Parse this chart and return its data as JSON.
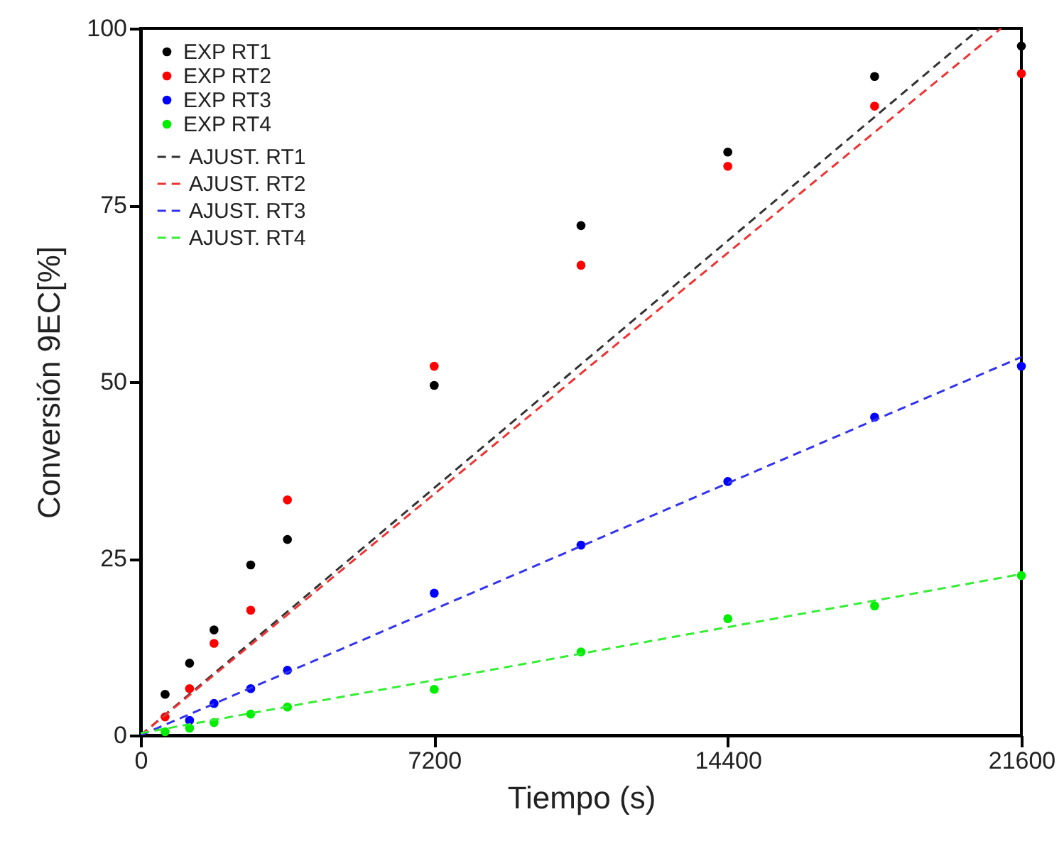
{
  "chart_data": {
    "type": "scatter",
    "xlabel": "Tiempo (s)",
    "ylabel": "Conversión 9EC[%]",
    "xlim": [
      0,
      21600
    ],
    "ylim": [
      0,
      100
    ],
    "xticks": [
      0,
      7200,
      14400,
      21600
    ],
    "yticks": [
      0,
      25,
      50,
      75,
      100
    ],
    "grid": false,
    "legend": "top left",
    "marker": "circle",
    "x": [
      600,
      1200,
      1800,
      2700,
      3600,
      7200,
      10800,
      14400,
      18000,
      21600
    ],
    "series": [
      {
        "name": "EXP RT1",
        "color": "#000000",
        "values": [
          5.8,
          10.2,
          14.9,
          24.1,
          27.7,
          49.5,
          72.1,
          82.5,
          93.2,
          97.5
        ]
      },
      {
        "name": "EXP RT2",
        "color": "#ff0000",
        "values": [
          2.6,
          6.6,
          13.0,
          17.7,
          33.3,
          52.2,
          66.5,
          80.5,
          89.0,
          93.6
        ]
      },
      {
        "name": "EXP RT3",
        "color": "#0000ff",
        "values": [
          null,
          2.1,
          4.5,
          6.6,
          9.2,
          20.1,
          26.9,
          35.9,
          45.0,
          52.2
        ]
      },
      {
        "name": "EXP RT4",
        "color": "#00ee00",
        "values": [
          0.5,
          1.0,
          1.8,
          3.0,
          4.0,
          6.5,
          11.8,
          16.5,
          18.3,
          22.6
        ]
      },
      {
        "name": "AJUST. RT1",
        "type": "line",
        "marker": "none",
        "line_style": "dashed",
        "color": "#333333",
        "x": [
          0,
          20580
        ],
        "values": [
          0,
          100
        ]
      },
      {
        "name": "AJUST. RT2",
        "type": "line",
        "marker": "none",
        "line_style": "dashed",
        "color": "#ee3333",
        "x": [
          0,
          21100
        ],
        "values": [
          0,
          100
        ]
      },
      {
        "name": "AJUST. RT3",
        "type": "line",
        "marker": "none",
        "line_style": "dashed",
        "color": "#3333ee",
        "x": [
          0,
          21600
        ],
        "values": [
          0,
          53.5
        ]
      },
      {
        "name": "AJUST. RT4",
        "type": "line",
        "marker": "none",
        "line_style": "dashed",
        "color": "#33ee33",
        "x": [
          0,
          21600
        ],
        "values": [
          0.3,
          22.8
        ]
      }
    ]
  }
}
